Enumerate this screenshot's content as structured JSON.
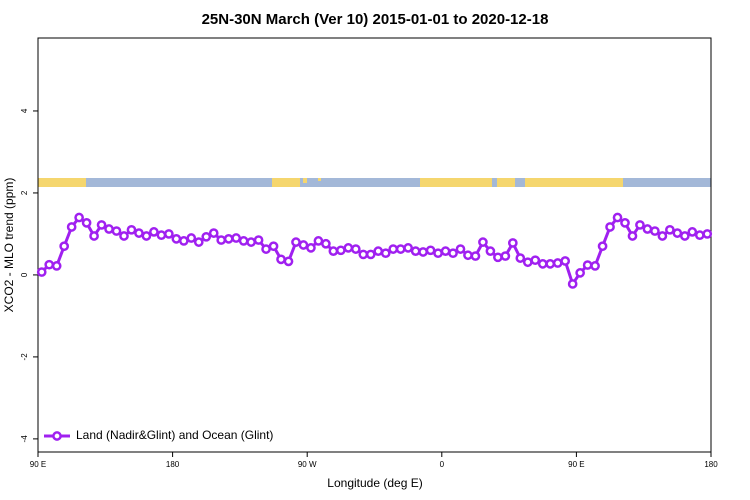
{
  "chart_data": {
    "type": "line",
    "title": "25N-30N March (Ver 10)   2015-01-01 to 2020-12-18",
    "xlabel": "Longitude (deg E)",
    "ylabel": "XCO2 - MLO trend (ppm)",
    "xlim": [
      90,
      540
    ],
    "xticks": [
      {
        "value": 90,
        "label": "90 E"
      },
      {
        "value": 180,
        "label": "180"
      },
      {
        "value": 270,
        "label": "90 W"
      },
      {
        "value": 360,
        "label": "0"
      },
      {
        "value": 450,
        "label": "90 E"
      },
      {
        "value": 540,
        "label": "180"
      }
    ],
    "ylim": [
      -4.32,
      5.78
    ],
    "yticks": [
      -4,
      -2,
      0,
      2,
      4
    ],
    "legend": "bottom-left",
    "x": [
      92.5,
      97.5,
      102.5,
      107.5,
      112.5,
      117.5,
      122.5,
      127.5,
      132.5,
      137.5,
      142.5,
      147.5,
      152.5,
      157.5,
      162.5,
      167.5,
      172.5,
      177.5,
      182.5,
      187.5,
      192.5,
      197.5,
      202.5,
      207.5,
      212.5,
      217.5,
      222.5,
      227.5,
      232.5,
      237.5,
      242.5,
      247.5,
      252.5,
      257.5,
      262.5,
      267.5,
      272.5,
      277.5,
      282.5,
      287.5,
      292.5,
      297.5,
      302.5,
      307.5,
      312.5,
      317.5,
      322.5,
      327.5,
      332.5,
      337.5,
      342.5,
      347.5,
      352.5,
      357.5,
      362.5,
      367.5,
      372.5,
      377.5,
      382.5,
      387.5,
      392.5,
      397.5,
      402.5,
      407.5,
      412.5,
      417.5,
      422.5,
      427.5,
      432.5,
      437.5,
      442.5,
      447.5,
      452.5,
      457.5,
      462.5,
      467.5,
      472.5,
      477.5,
      482.5,
      487.5,
      492.5,
      497.5,
      502.5,
      507.5,
      512.5,
      517.5,
      522.5,
      527.5,
      532.5,
      537.5
    ],
    "series": [
      {
        "name": "Land (Nadir&Glint) and Ocean (Glint)",
        "color": "#a020f0",
        "values": [
          0.07,
          0.25,
          0.22,
          0.7,
          1.17,
          1.4,
          1.27,
          0.95,
          1.22,
          1.12,
          1.07,
          0.95,
          1.1,
          1.02,
          0.95,
          1.05,
          0.97,
          1.0,
          0.88,
          0.83,
          0.9,
          0.8,
          0.93,
          1.02,
          0.85,
          0.88,
          0.9,
          0.83,
          0.8,
          0.85,
          0.63,
          0.7,
          0.38,
          0.33,
          0.8,
          0.73,
          0.66,
          0.83,
          0.76,
          0.58,
          0.6,
          0.66,
          0.63,
          0.5,
          0.5,
          0.58,
          0.53,
          0.63,
          0.63,
          0.66,
          0.58,
          0.56,
          0.6,
          0.53,
          0.58,
          0.53,
          0.63,
          0.48,
          0.46,
          0.8,
          0.58,
          0.43,
          0.46,
          0.78,
          0.41,
          0.31,
          0.36,
          0.27,
          0.27,
          0.29,
          0.34,
          -0.22,
          0.05,
          0.24,
          0.22,
          0.7,
          1.17,
          1.4,
          1.27,
          0.95,
          1.22,
          1.12,
          1.07,
          0.95,
          1.1,
          1.02,
          0.95,
          1.05,
          0.97,
          1.0
        ]
      }
    ]
  }
}
